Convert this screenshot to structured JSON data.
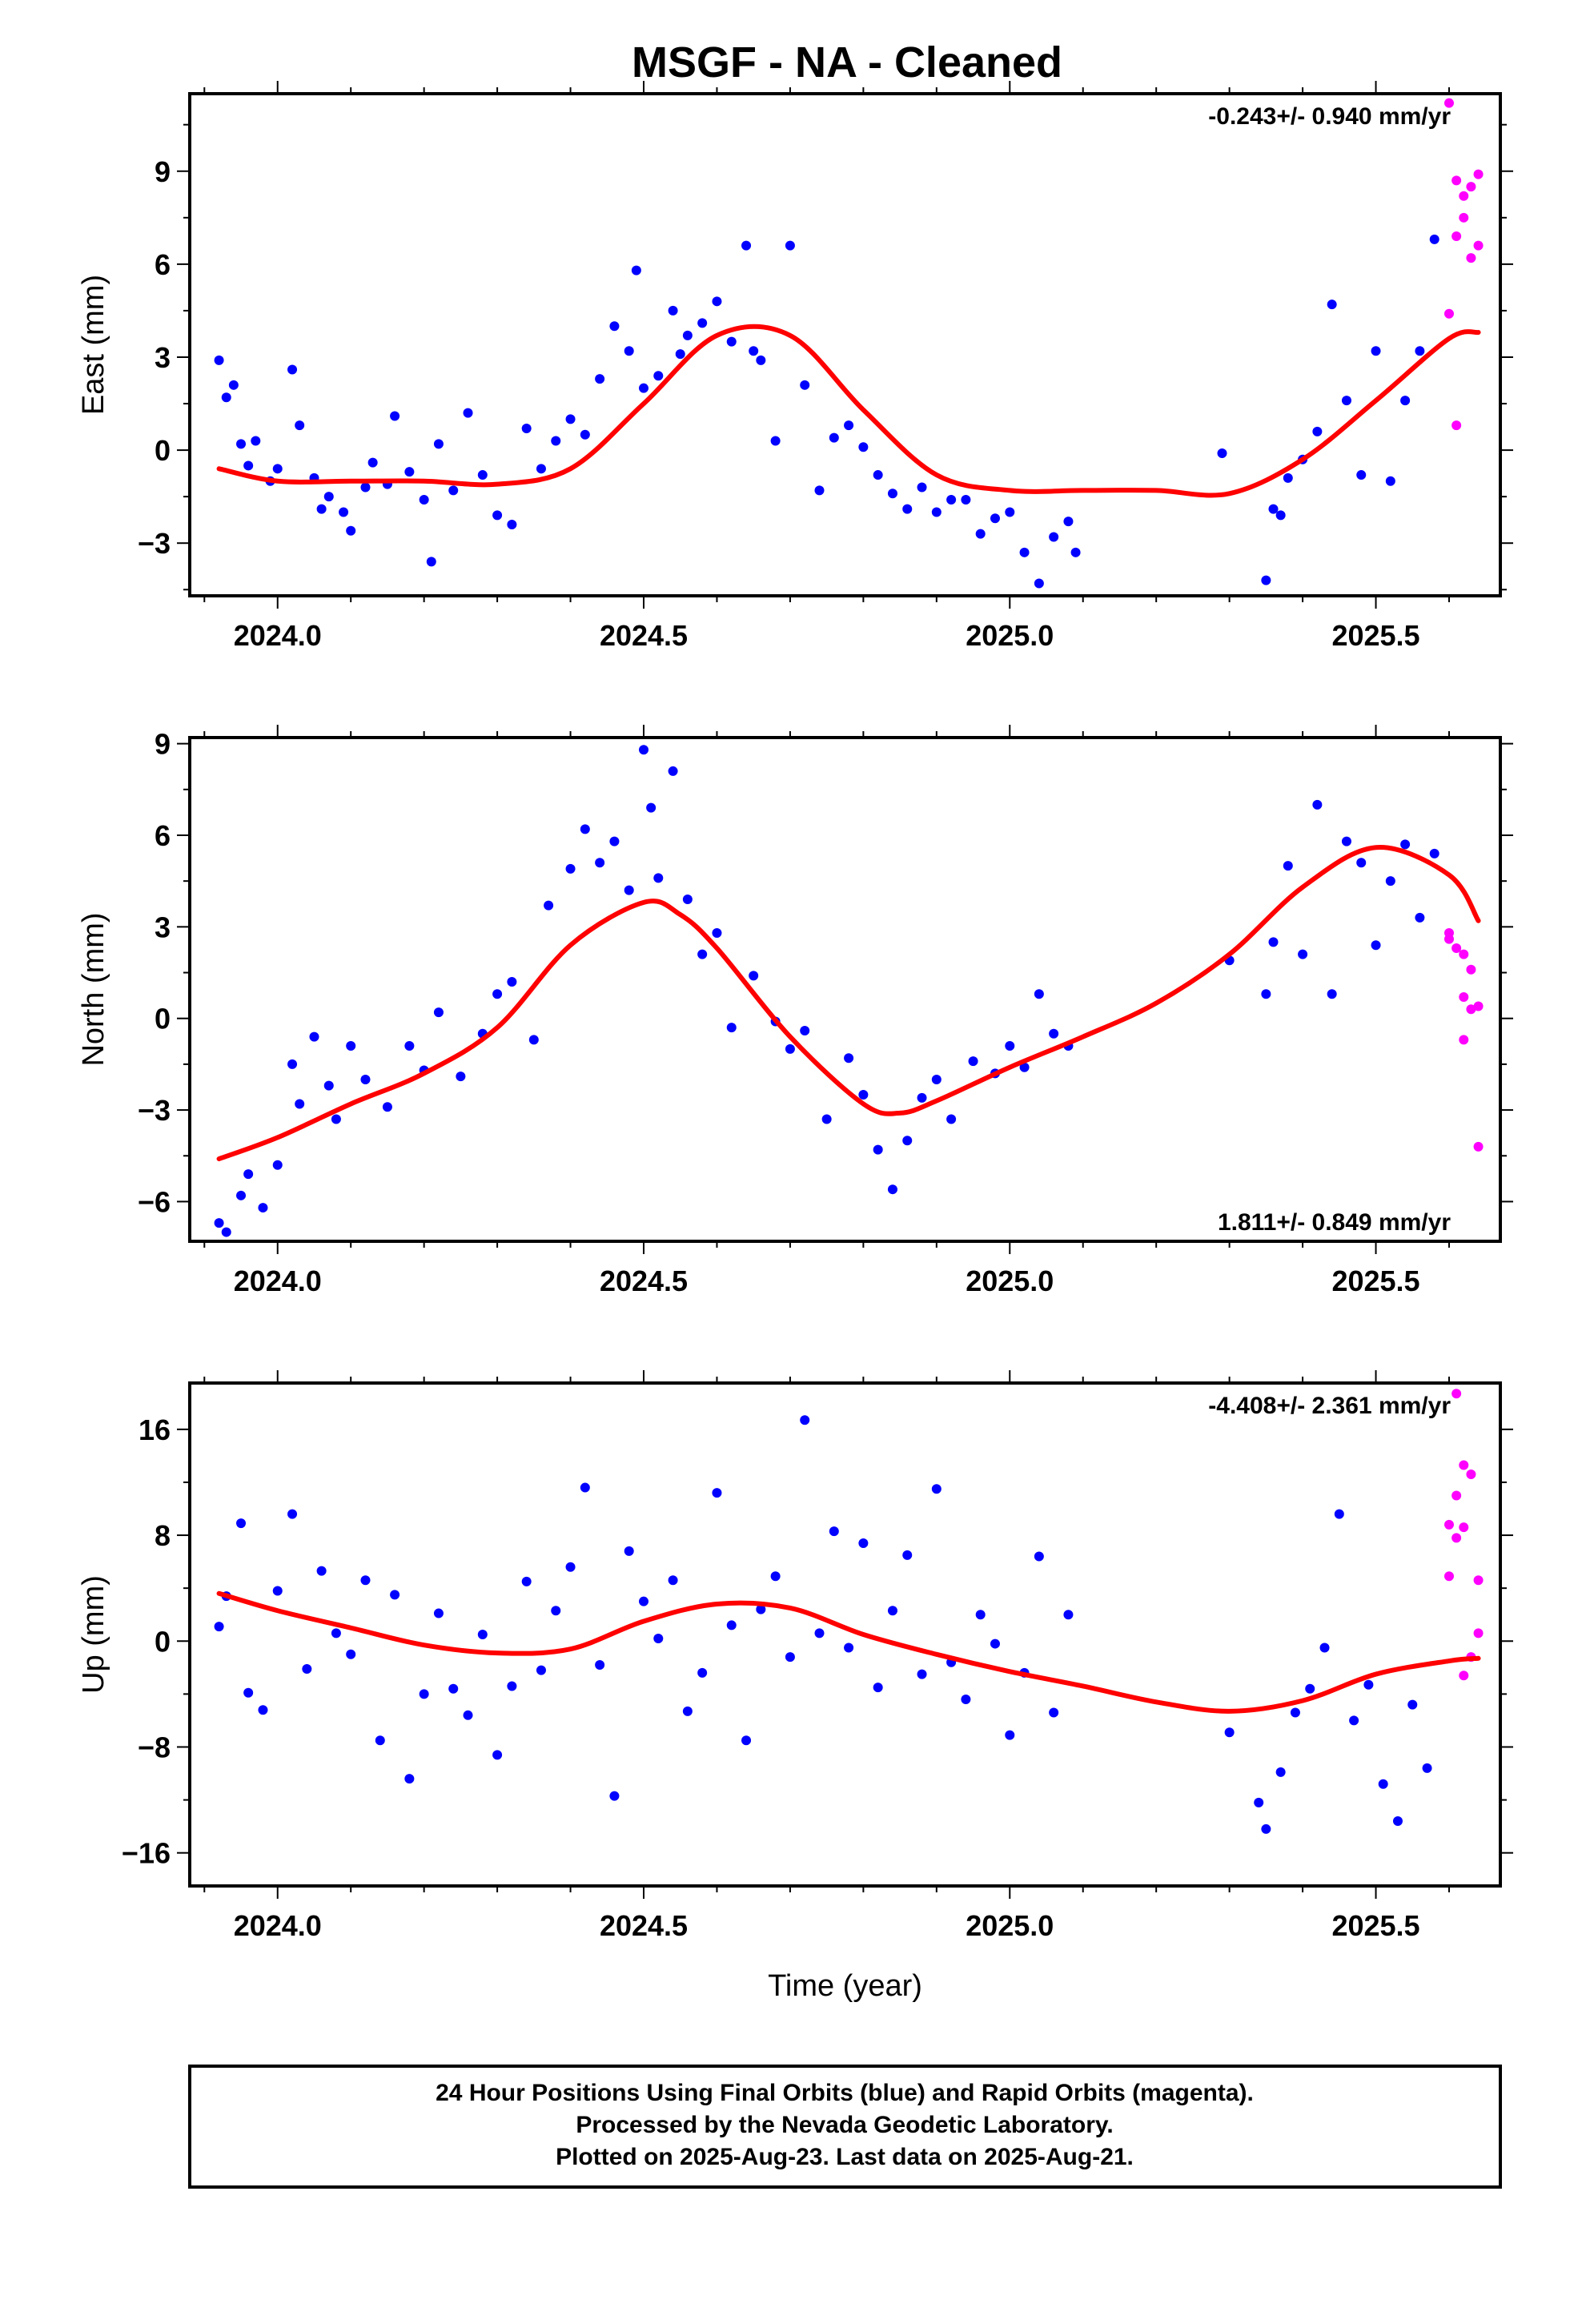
{
  "title": "MSGF  - NA - Cleaned",
  "colors": {
    "final": "#0000ff",
    "rapid": "#ff00ff",
    "model": "#ff0000",
    "frame": "#000000"
  },
  "x_tick_labels": [
    "2024.0",
    "2024.5",
    "2025.0",
    "2025.5"
  ],
  "footer": {
    "line1": "24 Hour Positions Using Final Orbits (blue) and Rapid Orbits (magenta).",
    "line2": "Processed by the Nevada Geodetic Laboratory.",
    "line3": "Plotted on 2025-Aug-23. Last data on 2025-Aug-21."
  },
  "chart_data": [
    {
      "type": "scatter",
      "ylabel": "East (mm)",
      "xlabel": "",
      "rate": "-0.243+/- 0.940 mm/yr",
      "rate_position": "top-right",
      "xlim": [
        2023.88,
        2025.67
      ],
      "ylim": [
        -4.7,
        11.5
      ],
      "xticks": [
        2024.0,
        2024.5,
        2025.0,
        2025.5
      ],
      "yticks": [
        -3,
        0,
        3,
        6,
        9
      ],
      "model": {
        "x": [
          2023.92,
          2024.0,
          2024.1,
          2024.2,
          2024.3,
          2024.4,
          2024.5,
          2024.6,
          2024.7,
          2024.8,
          2024.9,
          2025.0,
          2025.1,
          2025.2,
          2025.3,
          2025.4,
          2025.5,
          2025.6,
          2025.64
        ],
        "y": [
          -0.6,
          -1.0,
          -1.0,
          -1.0,
          -1.1,
          -0.6,
          1.5,
          3.7,
          3.7,
          1.3,
          -0.8,
          -1.3,
          -1.3,
          -1.3,
          -1.4,
          -0.3,
          1.6,
          3.6,
          3.8
        ]
      },
      "final": {
        "x": [
          2023.92,
          2023.93,
          2023.94,
          2023.95,
          2023.96,
          2023.97,
          2023.99,
          2024.0,
          2024.02,
          2024.03,
          2024.05,
          2024.06,
          2024.07,
          2024.09,
          2024.1,
          2024.12,
          2024.13,
          2024.15,
          2024.16,
          2024.18,
          2024.2,
          2024.21,
          2024.22,
          2024.24,
          2024.26,
          2024.28,
          2024.3,
          2024.32,
          2024.34,
          2024.36,
          2024.38,
          2024.4,
          2024.42,
          2024.44,
          2024.46,
          2024.48,
          2024.49,
          2024.5,
          2024.52,
          2024.54,
          2024.55,
          2024.56,
          2024.58,
          2024.6,
          2024.62,
          2024.64,
          2024.65,
          2024.66,
          2024.68,
          2024.7,
          2024.72,
          2024.74,
          2024.76,
          2024.78,
          2024.8,
          2024.82,
          2024.84,
          2024.86,
          2024.88,
          2024.9,
          2024.92,
          2024.94,
          2024.96,
          2024.98,
          2025.0,
          2025.02,
          2025.04,
          2025.06,
          2025.08,
          2025.09,
          2025.29,
          2025.35,
          2025.36,
          2025.37,
          2025.38,
          2025.4,
          2025.42,
          2025.44,
          2025.46,
          2025.48,
          2025.5,
          2025.52,
          2025.54,
          2025.56,
          2025.58
        ],
        "y": [
          2.9,
          1.7,
          2.1,
          0.2,
          -0.5,
          0.3,
          -1.0,
          -0.6,
          2.6,
          0.8,
          -0.9,
          -1.9,
          -1.5,
          -2.0,
          -2.6,
          -1.2,
          -0.4,
          -1.1,
          1.1,
          -0.7,
          -1.6,
          -3.6,
          0.2,
          -1.3,
          1.2,
          -0.8,
          -2.1,
          -2.4,
          0.7,
          -0.6,
          0.3,
          1.0,
          0.5,
          2.3,
          4.0,
          3.2,
          5.8,
          2.0,
          2.4,
          4.5,
          3.1,
          3.7,
          4.1,
          4.8,
          3.5,
          6.6,
          3.2,
          2.9,
          0.3,
          6.6,
          2.1,
          -1.3,
          0.4,
          0.8,
          0.1,
          -0.8,
          -1.4,
          -1.9,
          -1.2,
          -2.0,
          -1.6,
          -1.6,
          -2.7,
          -2.2,
          -2.0,
          -3.3,
          -4.3,
          -2.8,
          -2.3,
          -3.3,
          -0.1,
          -4.2,
          -1.9,
          -2.1,
          -0.9,
          -0.3,
          0.6,
          4.7,
          1.6,
          -0.8,
          3.2,
          -1.0,
          1.6,
          3.2,
          6.8
        ]
      },
      "rapid": {
        "x": [
          2025.6,
          2025.61,
          2025.62,
          2025.63,
          2025.64,
          2025.6,
          2025.61,
          2025.62,
          2025.63,
          2025.64,
          2025.61
        ],
        "y": [
          11.2,
          8.7,
          8.2,
          8.5,
          8.9,
          4.4,
          6.9,
          7.5,
          6.2,
          6.6,
          0.8
        ]
      }
    },
    {
      "type": "scatter",
      "ylabel": "North (mm)",
      "xlabel": "",
      "rate": "1.811+/- 0.849 mm/yr",
      "rate_position": "bottom-right",
      "xlim": [
        2023.88,
        2025.67
      ],
      "ylim": [
        -7.3,
        9.2
      ],
      "xticks": [
        2024.0,
        2024.5,
        2025.0,
        2025.5
      ],
      "yticks": [
        -6,
        -3,
        0,
        3,
        6,
        9
      ],
      "model": {
        "x": [
          2023.92,
          2024.0,
          2024.1,
          2024.2,
          2024.3,
          2024.4,
          2024.5,
          2024.55,
          2024.6,
          2024.7,
          2024.8,
          2024.85,
          2024.9,
          2025.0,
          2025.1,
          2025.2,
          2025.3,
          2025.4,
          2025.5,
          2025.6,
          2025.64
        ],
        "y": [
          -4.6,
          -3.9,
          -2.8,
          -1.8,
          -0.3,
          2.4,
          3.8,
          3.4,
          2.3,
          -0.6,
          -2.8,
          -3.1,
          -2.7,
          -1.6,
          -0.6,
          0.5,
          2.1,
          4.3,
          5.6,
          4.7,
          3.2
        ]
      },
      "final": {
        "x": [
          2023.92,
          2023.93,
          2023.95,
          2023.96,
          2023.98,
          2024.0,
          2024.02,
          2024.03,
          2024.05,
          2024.07,
          2024.08,
          2024.1,
          2024.12,
          2024.15,
          2024.18,
          2024.2,
          2024.22,
          2024.25,
          2024.28,
          2024.3,
          2024.32,
          2024.35,
          2024.37,
          2024.4,
          2024.42,
          2024.44,
          2024.46,
          2024.48,
          2024.5,
          2024.51,
          2024.52,
          2024.54,
          2024.56,
          2024.58,
          2024.6,
          2024.62,
          2024.65,
          2024.68,
          2024.7,
          2024.72,
          2024.75,
          2024.78,
          2024.8,
          2024.82,
          2024.84,
          2024.86,
          2024.88,
          2024.9,
          2024.92,
          2024.95,
          2024.98,
          2025.0,
          2025.02,
          2025.04,
          2025.06,
          2025.08,
          2025.3,
          2025.35,
          2025.36,
          2025.38,
          2025.4,
          2025.42,
          2025.44,
          2025.46,
          2025.48,
          2025.5,
          2025.52,
          2025.54,
          2025.56,
          2025.58
        ],
        "y": [
          -6.7,
          -7.0,
          -5.8,
          -5.1,
          -6.2,
          -4.8,
          -1.5,
          -2.8,
          -0.6,
          -2.2,
          -3.3,
          -0.9,
          -2.0,
          -2.9,
          -0.9,
          -1.7,
          0.2,
          -1.9,
          -0.5,
          0.8,
          1.2,
          -0.7,
          3.7,
          4.9,
          6.2,
          5.1,
          5.8,
          4.2,
          8.8,
          6.9,
          4.6,
          8.1,
          3.9,
          2.1,
          2.8,
          -0.3,
          1.4,
          -0.1,
          -1.0,
          -0.4,
          -3.3,
          -1.3,
          -2.5,
          -4.3,
          -5.6,
          -4.0,
          -2.6,
          -2.0,
          -3.3,
          -1.4,
          -1.8,
          -0.9,
          -1.6,
          0.8,
          -0.5,
          -0.9,
          1.9,
          0.8,
          2.5,
          5.0,
          2.1,
          7.0,
          0.8,
          5.8,
          5.1,
          2.4,
          4.5,
          5.7,
          3.3,
          5.4
        ]
      },
      "rapid": {
        "x": [
          2025.6,
          2025.61,
          2025.62,
          2025.63,
          2025.64,
          2025.6,
          2025.62,
          2025.63,
          2025.64,
          2025.62
        ],
        "y": [
          2.8,
          2.3,
          2.1,
          1.6,
          -4.2,
          2.6,
          0.7,
          0.3,
          0.4,
          -0.7
        ]
      }
    },
    {
      "type": "scatter",
      "ylabel": "Up (mm)",
      "xlabel": "Time (year)",
      "rate": "-4.408+/- 2.361 mm/yr",
      "rate_position": "top-right",
      "xlim": [
        2023.88,
        2025.67
      ],
      "ylim": [
        -18.5,
        19.5
      ],
      "xticks": [
        2024.0,
        2024.5,
        2025.0,
        2025.5
      ],
      "yticks": [
        -16,
        -8,
        0,
        8,
        16
      ],
      "model": {
        "x": [
          2023.92,
          2024.0,
          2024.1,
          2024.2,
          2024.3,
          2024.4,
          2024.5,
          2024.6,
          2024.7,
          2024.8,
          2024.9,
          2025.0,
          2025.1,
          2025.2,
          2025.3,
          2025.4,
          2025.5,
          2025.6,
          2025.64
        ],
        "y": [
          3.6,
          2.3,
          1.0,
          -0.3,
          -0.9,
          -0.6,
          1.5,
          2.8,
          2.5,
          0.5,
          -1.0,
          -2.3,
          -3.4,
          -4.6,
          -5.3,
          -4.5,
          -2.5,
          -1.5,
          -1.3
        ]
      },
      "final": {
        "x": [
          2023.92,
          2023.93,
          2023.95,
          2023.96,
          2023.98,
          2024.0,
          2024.02,
          2024.04,
          2024.06,
          2024.08,
          2024.1,
          2024.12,
          2024.14,
          2024.16,
          2024.18,
          2024.2,
          2024.22,
          2024.24,
          2024.26,
          2024.28,
          2024.3,
          2024.32,
          2024.34,
          2024.36,
          2024.38,
          2024.4,
          2024.42,
          2024.44,
          2024.46,
          2024.48,
          2024.5,
          2024.52,
          2024.54,
          2024.56,
          2024.58,
          2024.6,
          2024.62,
          2024.64,
          2024.66,
          2024.68,
          2024.7,
          2024.72,
          2024.74,
          2024.76,
          2024.78,
          2024.8,
          2024.82,
          2024.84,
          2024.86,
          2024.88,
          2024.9,
          2024.92,
          2024.94,
          2024.96,
          2024.98,
          2025.0,
          2025.02,
          2025.04,
          2025.06,
          2025.08,
          2025.3,
          2025.34,
          2025.35,
          2025.37,
          2025.39,
          2025.41,
          2025.43,
          2025.45,
          2025.47,
          2025.49,
          2025.51,
          2025.53,
          2025.55,
          2025.57
        ],
        "y": [
          1.1,
          3.4,
          8.9,
          -3.9,
          -5.2,
          3.8,
          9.6,
          -2.1,
          5.3,
          0.6,
          -1.0,
          4.6,
          -7.5,
          3.5,
          -10.4,
          -4.0,
          2.1,
          -3.6,
          -5.6,
          0.5,
          -8.6,
          -3.4,
          4.5,
          -2.2,
          2.3,
          5.6,
          11.6,
          -1.8,
          -11.7,
          6.8,
          3.0,
          0.2,
          4.6,
          -5.3,
          -2.4,
          11.2,
          1.2,
          -7.5,
          2.4,
          4.9,
          -1.2,
          16.7,
          0.6,
          8.3,
          -0.5,
          7.4,
          -3.5,
          2.3,
          6.5,
          -2.5,
          11.5,
          -1.6,
          -4.4,
          2.0,
          -0.2,
          -7.1,
          -2.4,
          6.4,
          -5.4,
          2.0,
          -6.9,
          -12.2,
          -14.2,
          -9.9,
          -5.4,
          -3.6,
          -0.5,
          9.6,
          -6.0,
          -3.3,
          -10.8,
          -13.6,
          -4.8,
          -9.6
        ]
      },
      "rapid": {
        "x": [
          2025.6,
          2025.61,
          2025.62,
          2025.63,
          2025.64,
          2025.6,
          2025.61,
          2025.62,
          2025.63,
          2025.64,
          2025.62,
          2025.61
        ],
        "y": [
          4.9,
          11.0,
          13.3,
          12.6,
          4.6,
          8.8,
          7.8,
          8.6,
          -1.2,
          0.6,
          -2.6,
          18.7
        ]
      }
    }
  ]
}
